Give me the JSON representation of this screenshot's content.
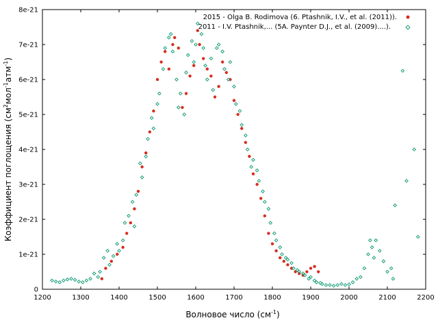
{
  "chart_data": {
    "type": "scatter",
    "xlabel": {
      "main": "Волновое число (см",
      "sup": "-1",
      "close": ")"
    },
    "ylabel": {
      "p1": "Коэффициент поглощения (см",
      "s1": "2",
      "p2": "мол",
      "s2": "-1",
      "p3": "атм",
      "s3": "-1",
      "p4": ")"
    },
    "xlim": [
      1200,
      2200
    ],
    "ylim": [
      0,
      8e-21
    ],
    "xticks": [
      "1200",
      "1300",
      "1400",
      "1500",
      "1600",
      "1700",
      "1800",
      "1900",
      "2000",
      "2100",
      "2200"
    ],
    "yticks": [
      "0",
      "1e-21",
      "2e-21",
      "3e-21",
      "4e-21",
      "5e-21",
      "6e-21",
      "7e-21",
      "8e-21"
    ],
    "legend_position": "top-right",
    "series": [
      {
        "name": "2015 - Olga B. Rodimova (6. Ptashnik, I.V., et al. (2011)).",
        "color": "#d62d20",
        "marker": "filled-circle",
        "x": [
          1355,
          1365,
          1380,
          1395,
          1410,
          1420,
          1430,
          1440,
          1450,
          1460,
          1470,
          1480,
          1490,
          1500,
          1510,
          1520,
          1530,
          1540,
          1545,
          1555,
          1565,
          1575,
          1585,
          1595,
          1605,
          1610,
          1620,
          1630,
          1640,
          1650,
          1660,
          1670,
          1680,
          1690,
          1700,
          1710,
          1720,
          1730,
          1740,
          1750,
          1760,
          1770,
          1780,
          1790,
          1800,
          1810,
          1820,
          1830,
          1840,
          1850,
          1860,
          1870,
          1880,
          1890,
          1900,
          1910,
          1920
        ],
        "y": [
          3e-22,
          6e-22,
          8e-22,
          1e-21,
          1.2e-21,
          1.6e-21,
          1.9e-21,
          2.3e-21,
          2.8e-21,
          3.5e-21,
          3.9e-21,
          4.5e-21,
          5.1e-21,
          6e-21,
          6.5e-21,
          6.8e-21,
          6.3e-21,
          7e-21,
          7.2e-21,
          6.9e-21,
          5.2e-21,
          5.6e-21,
          6.1e-21,
          6.4e-21,
          7.4e-21,
          7e-21,
          6.6e-21,
          6.3e-21,
          6.1e-21,
          5.5e-21,
          5.8e-21,
          6.5e-21,
          6.2e-21,
          6e-21,
          5.4e-21,
          5e-21,
          4.6e-21,
          4.2e-21,
          3.8e-21,
          3.3e-21,
          3e-21,
          2.6e-21,
          2.1e-21,
          1.6e-21,
          1.3e-21,
          1.1e-21,
          9e-22,
          8e-22,
          7e-22,
          6e-22,
          5e-22,
          4.5e-22,
          4e-22,
          5e-22,
          6e-22,
          6.5e-22,
          5e-22
        ]
      },
      {
        "name": "2011 - I.V. Ptashnik,... (5A. Paynter D.J., et al. (2009)....).",
        "color": "#1a9f7a",
        "marker": "open-diamond",
        "x": [
          1225,
          1235,
          1245,
          1255,
          1265,
          1275,
          1285,
          1295,
          1305,
          1315,
          1325,
          1335,
          1345,
          1350,
          1360,
          1370,
          1375,
          1385,
          1395,
          1400,
          1410,
          1415,
          1425,
          1435,
          1440,
          1445,
          1455,
          1460,
          1470,
          1475,
          1485,
          1490,
          1500,
          1505,
          1515,
          1520,
          1530,
          1535,
          1540,
          1550,
          1555,
          1560,
          1570,
          1575,
          1580,
          1590,
          1595,
          1600,
          1605,
          1615,
          1620,
          1625,
          1630,
          1640,
          1645,
          1655,
          1660,
          1670,
          1675,
          1685,
          1690,
          1700,
          1705,
          1715,
          1720,
          1730,
          1735,
          1745,
          1750,
          1760,
          1765,
          1775,
          1780,
          1790,
          1795,
          1805,
          1810,
          1820,
          1825,
          1835,
          1840,
          1850,
          1855,
          1865,
          1870,
          1880,
          1885,
          1895,
          1900,
          1910,
          1915,
          1925,
          1930,
          1940,
          1950,
          1960,
          1970,
          1980,
          1990,
          2000,
          2010,
          2020,
          2030,
          2040,
          2050,
          2055,
          2060,
          2065,
          2070,
          2080,
          2090,
          2100,
          2110,
          2115,
          2120,
          2140,
          2150,
          2170,
          2180
        ],
        "y": [
          2.5e-22,
          2.2e-22,
          2e-22,
          2.5e-22,
          2.8e-22,
          3e-22,
          2.7e-22,
          2.2e-22,
          2e-22,
          2.5e-22,
          3e-22,
          4.5e-22,
          3.5e-22,
          5e-22,
          9e-22,
          1.1e-21,
          7e-22,
          9.5e-22,
          1.3e-21,
          1.1e-21,
          1.4e-21,
          1.9e-21,
          2.1e-21,
          2.5e-21,
          1.8e-21,
          2.7e-21,
          3.6e-21,
          3.2e-21,
          3.8e-21,
          4.3e-21,
          4.9e-21,
          4.6e-21,
          5.3e-21,
          5.6e-21,
          6.3e-21,
          6.9e-21,
          7.2e-21,
          7.3e-21,
          6.8e-21,
          6e-21,
          5.2e-21,
          5.6e-21,
          5e-21,
          6.2e-21,
          6.7e-21,
          7.1e-21,
          6.5e-21,
          7e-21,
          7.6e-21,
          7.3e-21,
          6.9e-21,
          6.4e-21,
          6e-21,
          6.6e-21,
          5.7e-21,
          6.9e-21,
          7e-21,
          6.8e-21,
          6.3e-21,
          6e-21,
          6.5e-21,
          5.8e-21,
          5.3e-21,
          5.1e-21,
          4.7e-21,
          4.4e-21,
          4e-21,
          3.5e-21,
          3.7e-21,
          3.4e-21,
          3.1e-21,
          2.8e-21,
          2.5e-21,
          2.3e-21,
          1.9e-21,
          1.6e-21,
          1.4e-21,
          1.2e-21,
          1e-21,
          9e-22,
          8.5e-22,
          7.5e-22,
          6e-22,
          5.5e-22,
          5e-22,
          4.5e-22,
          4e-22,
          3e-22,
          3.5e-22,
          2.5e-22,
          2e-22,
          1.8e-22,
          1.5e-22,
          1.2e-22,
          1.2e-22,
          1e-22,
          1.2e-22,
          1.5e-22,
          1.2e-22,
          1.4e-22,
          2e-22,
          3e-22,
          3.5e-22,
          6e-22,
          1e-21,
          1.4e-21,
          1.2e-21,
          9e-22,
          1.4e-21,
          1.1e-21,
          8e-22,
          5e-22,
          6e-22,
          3e-22,
          2.4e-21,
          6.25e-21,
          3.1e-21,
          4e-21,
          1.5e-21
        ]
      }
    ]
  }
}
